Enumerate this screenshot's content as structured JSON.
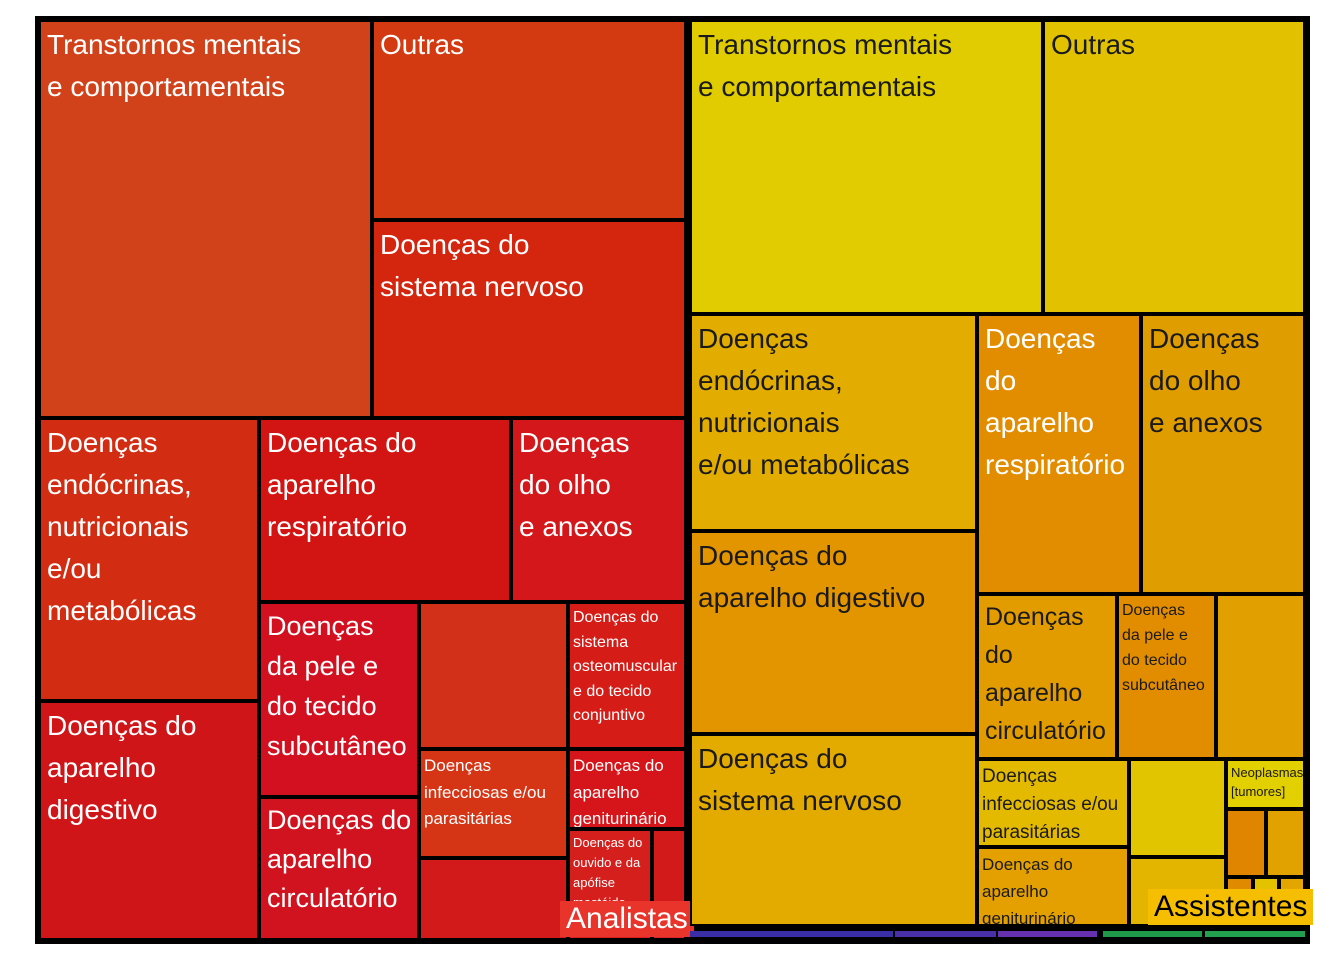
{
  "chart_data": {
    "type": "treemap",
    "title": "",
    "groups": [
      {
        "name": "Analistas",
        "color": "#d21a14",
        "categories": [
          {
            "label": "Transtornos mentais\ne comportamentais",
            "value": 66,
            "color": "#d2421a"
          },
          {
            "label": "Outras",
            "value": 31,
            "color": "#d33a12"
          },
          {
            "label": "Doenças do\nsistema nervoso",
            "value": 31,
            "color": "#d4250f"
          },
          {
            "label": "Doenças\nendócrinas,\nnutricionais\ne/ou\nmetabólicas",
            "value": 30,
            "color": "#d22d13"
          },
          {
            "label": "Doenças do\naparelho\nrespiratório",
            "value": 27,
            "color": "#d21512"
          },
          {
            "label": "Doenças\ndo olho\ne anexos",
            "value": 19,
            "color": "#d3171a"
          },
          {
            "label": "Doenças do\naparelho\ndigestivo",
            "value": 23,
            "color": "#d01519"
          },
          {
            "label": "Doenças\nda pele e\ndo tecido\nsubcutâneo",
            "value": 10,
            "color": "#d21020"
          },
          {
            "label": "Doenças do\naparelho\ncirculatório",
            "value": 8.5,
            "color": "#d0131e"
          },
          {
            "label": "",
            "value": 6.5,
            "color": "#d23018"
          },
          {
            "label": "Doenças do\nsistema\nosteomuscular\ne do tecido\nconjuntivo",
            "value": 6,
            "color": "#d51c17"
          },
          {
            "label": "Doenças\ninfecciosas e/ou\nparasitárias",
            "value": 4.5,
            "color": "#d63515"
          },
          {
            "label": "Doenças do\naparelho\ngeniturinário",
            "value": 3.5,
            "color": "#d51519"
          },
          {
            "label": "",
            "value": 3.5,
            "color": "#d11a19"
          },
          {
            "label": "Doenças do\nouvido e da\napófise\nmastóide",
            "value": 2.5,
            "color": "#d41f1c"
          },
          {
            "label": "",
            "value": 1,
            "color": "#d31a1b"
          },
          {
            "label": "",
            "value": 0.5,
            "color": "#d8242a"
          }
        ]
      },
      {
        "name": "Assistentes",
        "color": "#f7b500",
        "categories": [
          {
            "label": "Transtornos mentais\ne comportamentais",
            "value": 61,
            "color": "#e0cc00"
          },
          {
            "label": "Outras",
            "value": 46,
            "color": "#e2c200"
          },
          {
            "label": "Doenças\nendócrinas,\nnutricionais\ne/ou metabólicas",
            "value": 33,
            "color": "#e3ad00"
          },
          {
            "label": "Doenças\ndo\naparelho\nrespiratório",
            "value": 20,
            "color": "#e28c00"
          },
          {
            "label": "Doenças\ndo olho\ne anexos",
            "value": 19,
            "color": "#e09d00"
          },
          {
            "label": "Doenças do\naparelho digestivo",
            "value": 31,
            "color": "#e39500"
          },
          {
            "label": "Doenças do\nsistema nervoso",
            "value": 29,
            "color": "#e3aa00"
          },
          {
            "label": "Doenças\ndo\naparelho\ncirculatório",
            "value": 8.5,
            "color": "#e39c00"
          },
          {
            "label": "Doenças\nda pele e\ndo tecido\nsubcutâneo",
            "value": 6.5,
            "color": "#e28d00"
          },
          {
            "label": "",
            "value": 6,
            "color": "#e2a000"
          },
          {
            "label": "Doenças\ninfecciosas e/ou\nparasitárias",
            "value": 5,
            "color": "#e3ba00"
          },
          {
            "label": "",
            "value": 4,
            "color": "#e1c500"
          },
          {
            "label": "Doenças do\naparelho\ngeniturinário",
            "value": 3.5,
            "color": "#e3a000"
          },
          {
            "label": "",
            "value": 3.5,
            "color": "#e4b500"
          },
          {
            "label": "Neoplasmas\n[tumores]",
            "value": 2,
            "color": "#e3d000"
          },
          {
            "label": "",
            "value": 1.5,
            "color": "#e08500"
          },
          {
            "label": "",
            "value": 1.3,
            "color": "#e1a200"
          },
          {
            "label": "",
            "value": 0.6,
            "color": "#e08a00"
          },
          {
            "label": "",
            "value": 0.5,
            "color": "#e3c200"
          },
          {
            "label": "",
            "value": 0.4,
            "color": "#e3a600"
          }
        ]
      }
    ],
    "thin_groups": [
      {
        "value": 1.4,
        "color": "#3a2ea6"
      },
      {
        "value": 0.8,
        "color": "#4a30a8"
      },
      {
        "value": 0.8,
        "color": "#6630b0"
      },
      {
        "value": 0.8,
        "color": "#1e9a4a"
      },
      {
        "value": 0.8,
        "color": "#22a050"
      }
    ]
  }
}
